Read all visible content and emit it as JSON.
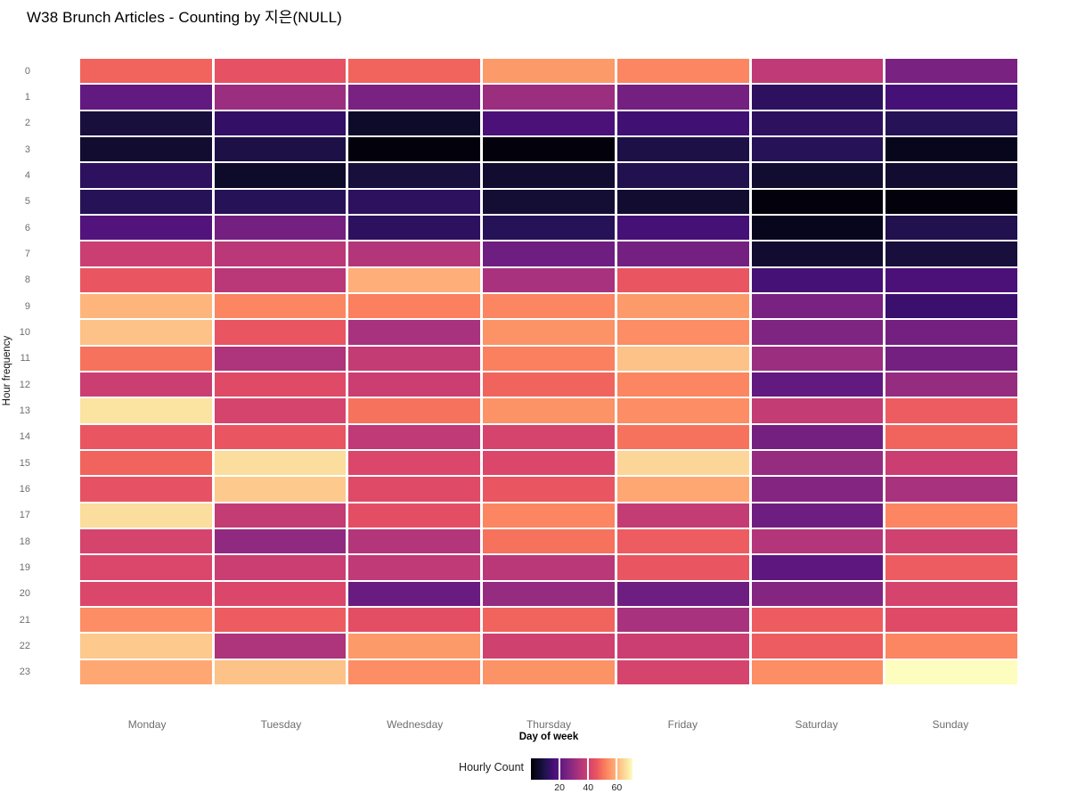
{
  "title": "W38 Brunch Articles - Counting by 지은(NULL)",
  "colors": {
    "background": "#ffffff",
    "tick_label": "#6e6e6e",
    "axis_title": "#000000",
    "cell_gap": "#ffffff"
  },
  "chart_data": {
    "type": "heatmap",
    "title": "W38 Brunch Articles - Counting by 지은(NULL)",
    "xlabel": "Day of week",
    "ylabel": "Hour frequency",
    "legend_title": "Hourly Count",
    "legend_ticks": [
      20,
      40,
      60
    ],
    "zlim": [
      0,
      71
    ],
    "legend_position": "bottom-center",
    "grid": "white gaps between cells, no axis lines",
    "colormap": "magma",
    "colormap_stops": [
      "#000004",
      "#0a0722",
      "#140e36",
      "#241253",
      "#3b0f70",
      "#51127c",
      "#641a80",
      "#782281",
      "#8c2981",
      "#a1307e",
      "#b73779",
      "#ca3e72",
      "#de4968",
      "#ea5661",
      "#f7705c",
      "#fb8861",
      "#fe9f6d",
      "#feb77e",
      "#fccf92",
      "#fbe6a4",
      "#fcfdbf"
    ],
    "x_categories": [
      "Monday",
      "Tuesday",
      "Wednesday",
      "Thursday",
      "Friday",
      "Saturday",
      "Sunday"
    ],
    "y_categories": [
      "0",
      "1",
      "2",
      "3",
      "4",
      "5",
      "6",
      "7",
      "8",
      "9",
      "10",
      "11",
      "12",
      "13",
      "14",
      "15",
      "16",
      "17",
      "18",
      "19",
      "20",
      "21",
      "22",
      "23"
    ],
    "series": [
      {
        "name": "Monday",
        "values": [
          48,
          21,
          8,
          6,
          12,
          11,
          18,
          39,
          46,
          60,
          62,
          50,
          39,
          67,
          46,
          48,
          45,
          66,
          41,
          42,
          42,
          54,
          63,
          58
        ]
      },
      {
        "name": "Tuesday",
        "values": [
          45,
          31,
          13,
          9,
          5,
          11,
          24,
          36,
          36,
          53,
          46,
          34,
          43,
          41,
          46,
          66,
          63,
          38,
          29,
          39,
          42,
          47,
          34,
          62
        ]
      },
      {
        "name": "Wednesday",
        "values": [
          48,
          25,
          5,
          1,
          8,
          12,
          12,
          35,
          59,
          52,
          33,
          38,
          39,
          50,
          37,
          42,
          43,
          44,
          35,
          37,
          22,
          44,
          56,
          54
        ]
      },
      {
        "name": "Thursday",
        "values": [
          56,
          31,
          17,
          1,
          6,
          7,
          11,
          23,
          33,
          53,
          55,
          52,
          48,
          55,
          41,
          42,
          46,
          53,
          50,
          36,
          30,
          48,
          40,
          55
        ]
      },
      {
        "name": "Friday",
        "values": [
          53,
          24,
          15,
          9,
          10,
          6,
          16,
          24,
          46,
          56,
          54,
          62,
          53,
          54,
          50,
          65,
          58,
          38,
          47,
          46,
          23,
          33,
          39,
          41
        ]
      },
      {
        "name": "Saturday",
        "values": [
          37,
          12,
          12,
          11,
          6,
          1,
          3,
          6,
          16,
          25,
          26,
          31,
          21,
          38,
          24,
          30,
          27,
          23,
          35,
          20,
          27,
          47,
          47,
          54
        ]
      },
      {
        "name": "Sunday",
        "values": [
          25,
          16,
          11,
          3,
          6,
          1,
          10,
          8,
          17,
          14,
          24,
          24,
          30,
          47,
          48,
          39,
          33,
          53,
          40,
          47,
          41,
          43,
          53,
          71
        ]
      }
    ]
  }
}
